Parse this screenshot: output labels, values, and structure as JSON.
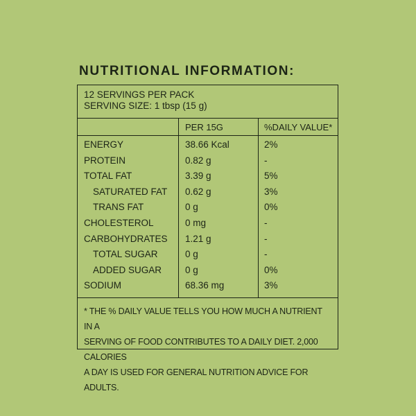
{
  "title": "NUTRITIONAL INFORMATION:",
  "servings_per_pack": "12 SERVINGS PER PACK",
  "serving_size": "SERVING SIZE: 1 tbsp (15 g)",
  "headers": {
    "per": "PER 15G",
    "dv": "%DAILY VALUE*"
  },
  "rows": [
    {
      "name": "ENERGY",
      "value": "38.66 Kcal",
      "dv": "2%",
      "indent": false
    },
    {
      "name": "PROTEIN",
      "value": "0.82 g",
      "dv": "-",
      "indent": false
    },
    {
      "name": "TOTAL FAT",
      "value": "3.39 g",
      "dv": "5%",
      "indent": false
    },
    {
      "name": "SATURATED FAT",
      "value": "0.62 g",
      "dv": "3%",
      "indent": true
    },
    {
      "name": "TRANS FAT",
      "value": "0 g",
      "dv": "0%",
      "indent": true
    },
    {
      "name": "CHOLESTEROL",
      "value": "0 mg",
      "dv": "-",
      "indent": false
    },
    {
      "name": "CARBOHYDRATES",
      "value": "1.21 g",
      "dv": "-",
      "indent": false
    },
    {
      "name": "TOTAL SUGAR",
      "value": "0 g",
      "dv": "-",
      "indent": true
    },
    {
      "name": "ADDED SUGAR",
      "value": "0 g",
      "dv": "0%",
      "indent": true
    },
    {
      "name": "SODIUM",
      "value": "68.36 mg",
      "dv": "3%",
      "indent": false
    }
  ],
  "footnote_lines": [
    "* THE % DAILY VALUE TELLS YOU HOW MUCH A NUTRIENT IN A",
    "SERVING OF FOOD CONTRIBUTES TO A DAILY DIET. 2,000 CALORIES",
    "A DAY IS USED FOR GENERAL NUTRITION ADVICE FOR ADULTS."
  ]
}
